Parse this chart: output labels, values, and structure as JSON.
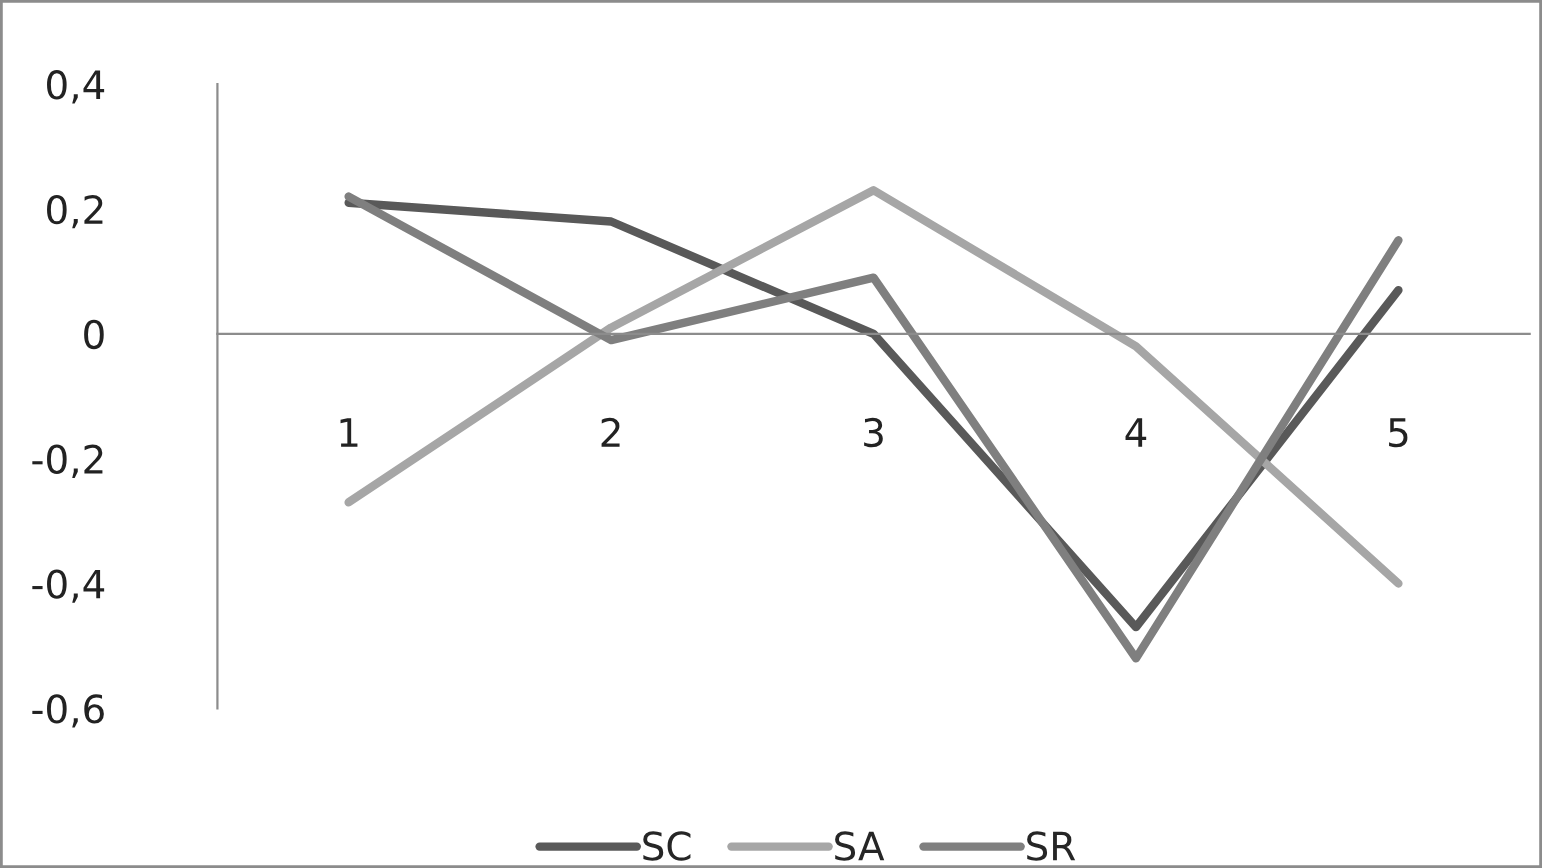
{
  "chart_data": {
    "type": "line",
    "categories": [
      "1",
      "2",
      "3",
      "4",
      "5"
    ],
    "series": [
      {
        "name": "SC",
        "color": "#595959",
        "values": [
          0.21,
          0.18,
          0,
          -0.47,
          0.07
        ]
      },
      {
        "name": "SA",
        "color": "#a6a6a6",
        "values": [
          -0.27,
          0.01,
          0.23,
          -0.02,
          -0.4
        ]
      },
      {
        "name": "SR",
        "color": "#7f7f7f",
        "values": [
          0.22,
          -0.01,
          0.09,
          -0.52,
          0.15
        ]
      }
    ],
    "ylim": [
      -0.6,
      0.4
    ],
    "yticks": [
      {
        "value": 0.4,
        "label": "0,4"
      },
      {
        "value": 0.2,
        "label": "0,2"
      },
      0,
      {
        "value": -0.2,
        "label": "-0,2"
      },
      {
        "value": -0.4,
        "label": "-0,4"
      },
      {
        "value": -0.6,
        "label": "-0,6"
      }
    ],
    "grid": false,
    "legend": "bottom",
    "marker": "none",
    "line_style": "solid"
  }
}
